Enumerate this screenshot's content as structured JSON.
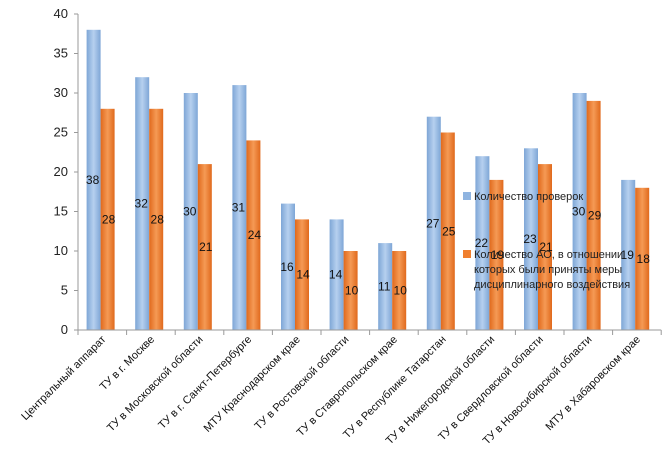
{
  "chart_data": {
    "type": "bar",
    "categories": [
      "Центральный аппарат",
      "ТУ в г. Москве",
      "ТУ в Московской области",
      "ТУ в г. Санкт-Петербурге",
      "МТУ Краснодарском крае",
      "ТУ в Ростовской области",
      "ТУ в Ставропольском крае",
      "ТУ в Республике Татарстан",
      "ТУ в Нижегородской области",
      "ТУ в Свердловской области",
      "ТУ в Новосибирской области",
      "МТУ в Хабаровском крае"
    ],
    "series": [
      {
        "name": "Количество проверок",
        "values": [
          38,
          32,
          30,
          31,
          16,
          14,
          11,
          27,
          22,
          23,
          30,
          19
        ]
      },
      {
        "name": "Количество АО, в отношении которых были приняты меры дисциплинарного воздействия",
        "values": [
          28,
          28,
          21,
          24,
          14,
          10,
          10,
          25,
          19,
          21,
          29,
          18
        ]
      }
    ],
    "ylim": [
      0,
      40
    ],
    "yticks": [
      "0",
      "5",
      "10",
      "15",
      "20",
      "25",
      "30",
      "35",
      "40"
    ],
    "legend": {
      "position": "right",
      "entries": [
        [
          "Количество проверок"
        ],
        [
          "Количество АО, в отношении",
          "которых были приняты меры",
          "дисциплинарного воздействия"
        ]
      ]
    },
    "colors": [
      "#8fb4e0",
      "#f07f2e"
    ],
    "grid": false
  }
}
